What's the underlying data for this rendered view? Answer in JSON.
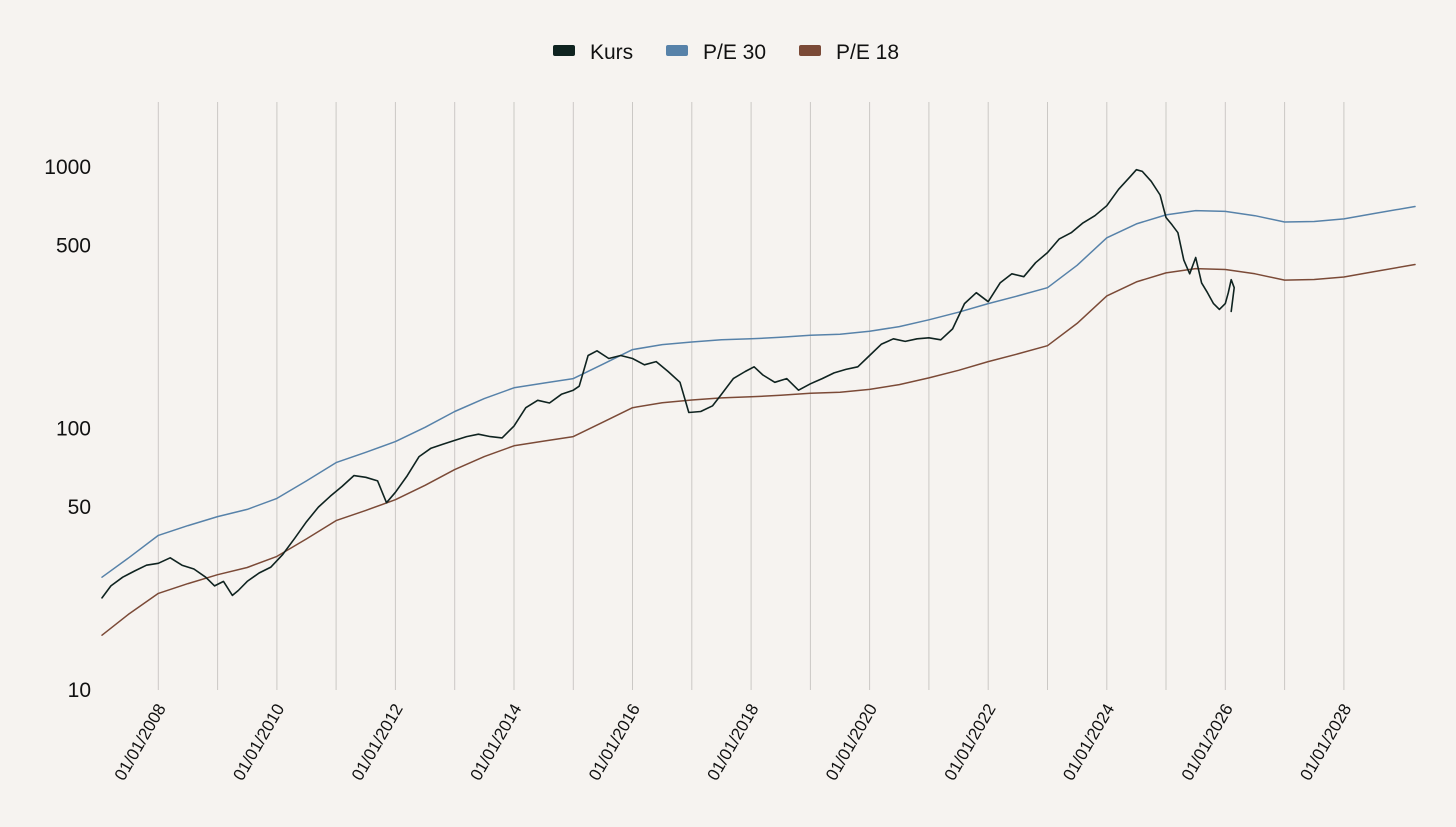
{
  "chart_data": {
    "type": "line",
    "title": "",
    "xlabel": "",
    "ylabel": "",
    "y_scale": "log",
    "ylim": [
      10,
      1800
    ],
    "xlim": [
      2007.05,
      2029.2
    ],
    "legend_position": "top-center",
    "grid": {
      "vertical": true,
      "horizontal": false
    },
    "y_ticks": [
      {
        "value": 10,
        "label": "10"
      },
      {
        "value": 50,
        "label": "50"
      },
      {
        "value": 100,
        "label": "100"
      },
      {
        "value": 500,
        "label": "500"
      },
      {
        "value": 1000,
        "label": "1000"
      }
    ],
    "x_ticks": [
      {
        "value": 2008,
        "label": "01/01/2008"
      },
      {
        "value": 2010,
        "label": "01/01/2010"
      },
      {
        "value": 2012,
        "label": "01/01/2012"
      },
      {
        "value": 2014,
        "label": "01/01/2014"
      },
      {
        "value": 2016,
        "label": "01/01/2016"
      },
      {
        "value": 2018,
        "label": "01/01/2018"
      },
      {
        "value": 2020,
        "label": "01/01/2020"
      },
      {
        "value": 2022,
        "label": "01/01/2022"
      },
      {
        "value": 2024,
        "label": "01/01/2024"
      },
      {
        "value": 2026,
        "label": "01/01/2026"
      },
      {
        "value": 2028,
        "label": "01/01/2028"
      }
    ],
    "x_grid": [
      2008,
      2009,
      2010,
      2011,
      2012,
      2013,
      2014,
      2015,
      2016,
      2017,
      2018,
      2019,
      2020,
      2021,
      2022,
      2023,
      2024,
      2025,
      2026,
      2027,
      2028
    ],
    "series": [
      {
        "name": "Kurs",
        "color": "#0f2320",
        "points": [
          [
            2007.05,
            22.5
          ],
          [
            2007.2,
            25
          ],
          [
            2007.4,
            27
          ],
          [
            2007.6,
            28.5
          ],
          [
            2007.8,
            30
          ],
          [
            2008.0,
            30.5
          ],
          [
            2008.2,
            32
          ],
          [
            2008.4,
            30
          ],
          [
            2008.6,
            29
          ],
          [
            2008.8,
            27
          ],
          [
            2008.95,
            25
          ],
          [
            2009.1,
            26
          ],
          [
            2009.25,
            23
          ],
          [
            2009.35,
            24
          ],
          [
            2009.5,
            26
          ],
          [
            2009.7,
            28
          ],
          [
            2009.9,
            29.5
          ],
          [
            2010.1,
            33
          ],
          [
            2010.3,
            38
          ],
          [
            2010.5,
            44
          ],
          [
            2010.7,
            50
          ],
          [
            2010.9,
            55
          ],
          [
            2011.1,
            60
          ],
          [
            2011.3,
            66
          ],
          [
            2011.5,
            65
          ],
          [
            2011.7,
            63
          ],
          [
            2011.85,
            52
          ],
          [
            2012.0,
            57
          ],
          [
            2012.2,
            66
          ],
          [
            2012.4,
            78
          ],
          [
            2012.6,
            84
          ],
          [
            2012.8,
            87
          ],
          [
            2013.0,
            90
          ],
          [
            2013.2,
            93
          ],
          [
            2013.4,
            95
          ],
          [
            2013.6,
            93
          ],
          [
            2013.8,
            92
          ],
          [
            2014.0,
            102
          ],
          [
            2014.2,
            120
          ],
          [
            2014.4,
            128
          ],
          [
            2014.6,
            125
          ],
          [
            2014.8,
            135
          ],
          [
            2015.0,
            140
          ],
          [
            2015.1,
            145
          ],
          [
            2015.25,
            190
          ],
          [
            2015.4,
            198
          ],
          [
            2015.6,
            185
          ],
          [
            2015.8,
            190
          ],
          [
            2016.0,
            185
          ],
          [
            2016.2,
            175
          ],
          [
            2016.4,
            180
          ],
          [
            2016.6,
            165
          ],
          [
            2016.8,
            150
          ],
          [
            2016.95,
            115
          ],
          [
            2017.15,
            116
          ],
          [
            2017.35,
            122
          ],
          [
            2017.5,
            135
          ],
          [
            2017.7,
            155
          ],
          [
            2017.9,
            165
          ],
          [
            2018.05,
            172
          ],
          [
            2018.2,
            160
          ],
          [
            2018.4,
            150
          ],
          [
            2018.6,
            155
          ],
          [
            2018.8,
            140
          ],
          [
            2019.0,
            148
          ],
          [
            2019.2,
            155
          ],
          [
            2019.4,
            163
          ],
          [
            2019.6,
            168
          ],
          [
            2019.8,
            172
          ],
          [
            2020.0,
            190
          ],
          [
            2020.2,
            210
          ],
          [
            2020.4,
            220
          ],
          [
            2020.6,
            215
          ],
          [
            2020.8,
            220
          ],
          [
            2021.0,
            222
          ],
          [
            2021.2,
            218
          ],
          [
            2021.4,
            240
          ],
          [
            2021.6,
            300
          ],
          [
            2021.8,
            330
          ],
          [
            2022.0,
            305
          ],
          [
            2022.2,
            360
          ],
          [
            2022.4,
            390
          ],
          [
            2022.6,
            380
          ],
          [
            2022.8,
            430
          ],
          [
            2023.0,
            470
          ],
          [
            2023.2,
            530
          ],
          [
            2023.4,
            560
          ],
          [
            2023.6,
            610
          ],
          [
            2023.8,
            650
          ],
          [
            2024.0,
            710
          ],
          [
            2024.2,
            820
          ],
          [
            2024.4,
            920
          ],
          [
            2024.5,
            975
          ],
          [
            2024.6,
            960
          ],
          [
            2024.75,
            880
          ],
          [
            2024.9,
            780
          ],
          [
            2025.0,
            640
          ],
          [
            2025.1,
            600
          ],
          [
            2025.2,
            560
          ],
          [
            2025.3,
            440
          ],
          [
            2025.4,
            390
          ],
          [
            2025.5,
            450
          ],
          [
            2025.6,
            360
          ],
          [
            2025.7,
            330
          ],
          [
            2025.8,
            300
          ],
          [
            2025.9,
            285
          ],
          [
            2026.0,
            300
          ],
          [
            2026.05,
            330
          ],
          [
            2026.1,
            370
          ],
          [
            2026.15,
            345
          ],
          [
            2026.1,
            280
          ]
        ]
      },
      {
        "name": "P/E 30",
        "color": "#5782a9",
        "points": [
          [
            2007.05,
            27
          ],
          [
            2007.5,
            32
          ],
          [
            2008.0,
            39
          ],
          [
            2008.5,
            42.5
          ],
          [
            2009.0,
            46
          ],
          [
            2009.5,
            49
          ],
          [
            2010.0,
            54
          ],
          [
            2010.5,
            63
          ],
          [
            2011.0,
            74
          ],
          [
            2011.5,
            81
          ],
          [
            2012.0,
            89
          ],
          [
            2012.5,
            101
          ],
          [
            2013.0,
            116
          ],
          [
            2013.5,
            130
          ],
          [
            2014.0,
            143
          ],
          [
            2014.5,
            149
          ],
          [
            2015.0,
            155
          ],
          [
            2015.5,
            176
          ],
          [
            2016.0,
            200
          ],
          [
            2016.5,
            209
          ],
          [
            2017.0,
            214
          ],
          [
            2017.5,
            218
          ],
          [
            2018.0,
            220
          ],
          [
            2018.5,
            223
          ],
          [
            2019.0,
            227
          ],
          [
            2019.5,
            229
          ],
          [
            2020.0,
            235
          ],
          [
            2020.5,
            245
          ],
          [
            2021.0,
            260
          ],
          [
            2021.5,
            278
          ],
          [
            2022.0,
            300
          ],
          [
            2022.5,
            321
          ],
          [
            2023.0,
            345
          ],
          [
            2023.5,
            420
          ],
          [
            2024.0,
            535
          ],
          [
            2024.5,
            605
          ],
          [
            2025.0,
            655
          ],
          [
            2025.5,
            680
          ],
          [
            2026.0,
            675
          ],
          [
            2026.5,
            650
          ],
          [
            2027.0,
            615
          ],
          [
            2027.5,
            618
          ],
          [
            2028.0,
            632
          ],
          [
            2028.5,
            662
          ],
          [
            2029.2,
            705
          ]
        ]
      },
      {
        "name": "P/E 18",
        "color": "#7b4a37",
        "points": [
          [
            2007.05,
            16.2
          ],
          [
            2007.5,
            19.5
          ],
          [
            2008.0,
            23.4
          ],
          [
            2008.5,
            25.5
          ],
          [
            2009.0,
            27.6
          ],
          [
            2009.5,
            29.4
          ],
          [
            2010.0,
            32.4
          ],
          [
            2010.5,
            37.8
          ],
          [
            2011.0,
            44.4
          ],
          [
            2011.5,
            48.6
          ],
          [
            2012.0,
            53.4
          ],
          [
            2012.5,
            60.6
          ],
          [
            2013.0,
            69.6
          ],
          [
            2013.5,
            78
          ],
          [
            2014.0,
            85.8
          ],
          [
            2014.5,
            89.4
          ],
          [
            2015.0,
            93
          ],
          [
            2015.5,
            105.6
          ],
          [
            2016.0,
            120
          ],
          [
            2016.5,
            125.4
          ],
          [
            2017.0,
            128.4
          ],
          [
            2017.5,
            130.8
          ],
          [
            2018.0,
            132
          ],
          [
            2018.5,
            133.8
          ],
          [
            2019.0,
            136.2
          ],
          [
            2019.5,
            137.4
          ],
          [
            2020.0,
            141
          ],
          [
            2020.5,
            147
          ],
          [
            2021.0,
            156
          ],
          [
            2021.5,
            166.8
          ],
          [
            2022.0,
            180
          ],
          [
            2022.5,
            192.6
          ],
          [
            2023.0,
            207
          ],
          [
            2023.5,
            252
          ],
          [
            2024.0,
            321
          ],
          [
            2024.5,
            363
          ],
          [
            2025.0,
            393
          ],
          [
            2025.5,
            408
          ],
          [
            2026.0,
            405
          ],
          [
            2026.5,
            390
          ],
          [
            2027.0,
            369
          ],
          [
            2027.5,
            370.8
          ],
          [
            2028.0,
            379.2
          ],
          [
            2028.5,
            397.2
          ],
          [
            2029.2,
            423
          ]
        ]
      }
    ]
  }
}
